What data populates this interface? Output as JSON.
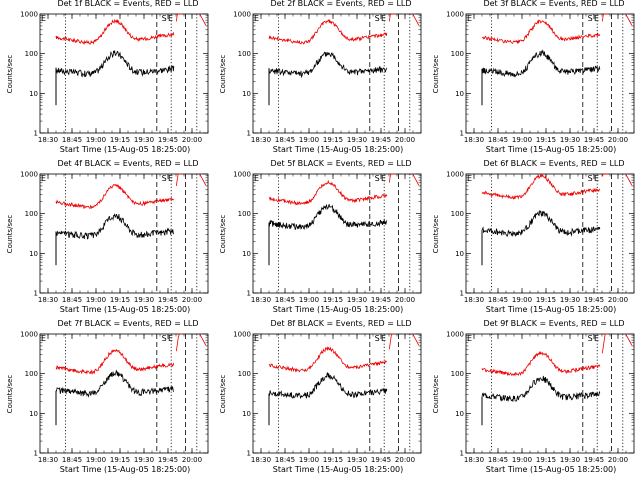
{
  "chart_data": [
    {
      "type": "line",
      "title": "Det 1f BLACK = Events, RED = LLD",
      "xlabel": "Start Time (15-Aug-05 18:25:00)",
      "ylabel": "Counts/sec",
      "xticks": [
        "18:30",
        "18:45",
        "19:00",
        "19:15",
        "19:30",
        "19:45",
        "20:00"
      ],
      "yticks": [
        "1",
        "10",
        "100",
        "1000"
      ],
      "ylim": [
        1,
        1000
      ],
      "yscale": "log",
      "marker_labels": [
        "E",
        "S",
        "E"
      ],
      "red_base": 300,
      "black_base": 40,
      "peak": 19.2,
      "gap_lld_end": 19.9
    },
    {
      "type": "line",
      "title": "Det 2f BLACK = Events, RED = LLD",
      "xlabel": "Start Time (15-Aug-05 18:25:00)",
      "ylabel": "Counts/sec",
      "xticks": [
        "18:30",
        "18:45",
        "19:00",
        "19:15",
        "19:30",
        "19:45",
        "20:00"
      ],
      "yticks": [
        "1",
        "10",
        "100",
        "1000"
      ],
      "ylim": [
        1,
        1000
      ],
      "yscale": "log",
      "marker_labels": [
        "E",
        "S",
        "E"
      ],
      "red_base": 300,
      "black_base": 40,
      "peak": 19.2,
      "gap_lld_end": 19.9
    },
    {
      "type": "line",
      "title": "Det 3f BLACK = Events, RED = LLD",
      "xlabel": "Start Time (15-Aug-05 18:25:00)",
      "ylabel": "Counts/sec",
      "xticks": [
        "18:30",
        "18:45",
        "19:00",
        "19:15",
        "19:30",
        "19:45",
        "20:00"
      ],
      "yticks": [
        "1",
        "10",
        "100",
        "1000"
      ],
      "ylim": [
        1,
        1000
      ],
      "yscale": "log",
      "marker_labels": [
        "E",
        "S",
        "E"
      ],
      "red_base": 300,
      "black_base": 40,
      "peak": 19.2,
      "gap_lld_end": 19.9
    },
    {
      "type": "line",
      "title": "Det 4f BLACK = Events, RED = LLD",
      "xlabel": "Start Time (15-Aug-05 18:25:00)",
      "ylabel": "Counts/sec",
      "xticks": [
        "18:30",
        "18:45",
        "19:00",
        "19:15",
        "19:30",
        "19:45",
        "20:00"
      ],
      "yticks": [
        "1",
        "10",
        "100",
        "1000"
      ],
      "ylim": [
        1,
        1000
      ],
      "yscale": "log",
      "marker_labels": [
        "E",
        "S",
        "E"
      ],
      "red_base": 230,
      "black_base": 35,
      "peak": 19.2,
      "gap_lld_end": 19.9
    },
    {
      "type": "line",
      "title": "Det 5f BLACK = Events, RED = LLD",
      "xlabel": "Start Time (15-Aug-05 18:25:00)",
      "ylabel": "Counts/sec",
      "xticks": [
        "18:30",
        "18:45",
        "19:00",
        "19:15",
        "19:30",
        "19:45",
        "20:00"
      ],
      "yticks": [
        "1",
        "10",
        "100",
        "1000"
      ],
      "ylim": [
        1,
        1000
      ],
      "yscale": "log",
      "marker_labels": [
        "E",
        "S",
        "E"
      ],
      "red_base": 280,
      "black_base": 60,
      "peak": 19.2,
      "gap_lld_end": 19.9
    },
    {
      "type": "line",
      "title": "Det 6f BLACK = Events, RED = LLD",
      "xlabel": "Start Time (15-Aug-05 18:25:00)",
      "ylabel": "Counts/sec",
      "xticks": [
        "18:30",
        "18:45",
        "19:00",
        "19:15",
        "19:30",
        "19:45",
        "20:00"
      ],
      "yticks": [
        "1",
        "10",
        "100",
        "1000"
      ],
      "ylim": [
        1,
        1000
      ],
      "yscale": "log",
      "marker_labels": [
        "E",
        "S",
        "E"
      ],
      "red_base": 400,
      "black_base": 40,
      "peak": 19.2,
      "gap_lld_end": 19.9
    },
    {
      "type": "line",
      "title": "Det 7f BLACK = Events, RED = LLD",
      "xlabel": "Start Time (15-Aug-05 18:25:00)",
      "ylabel": "Counts/sec",
      "xticks": [
        "18:30",
        "18:45",
        "19:00",
        "19:15",
        "19:30",
        "19:45",
        "20:00"
      ],
      "yticks": [
        "1",
        "10",
        "100",
        "1000"
      ],
      "ylim": [
        1,
        1000
      ],
      "yscale": "log",
      "marker_labels": [
        "E",
        "S",
        "E"
      ],
      "red_base": 170,
      "black_base": 40,
      "peak": 19.2,
      "gap_lld_end": 19.9
    },
    {
      "type": "line",
      "title": "Det 8f BLACK = Events, RED = LLD",
      "xlabel": "Start Time (15-Aug-05 18:25:00)",
      "ylabel": "Counts/sec",
      "xticks": [
        "18:30",
        "18:45",
        "19:00",
        "19:15",
        "19:30",
        "19:45",
        "20:00"
      ],
      "yticks": [
        "1",
        "10",
        "100",
        "1000"
      ],
      "ylim": [
        1,
        1000
      ],
      "yscale": "log",
      "marker_labels": [
        "E",
        "S",
        "E"
      ],
      "red_base": 190,
      "black_base": 35,
      "peak": 19.2,
      "gap_lld_end": 19.9
    },
    {
      "type": "line",
      "title": "Det 9f BLACK = Events, RED = LLD",
      "xlabel": "Start Time (15-Aug-05 18:25:00)",
      "ylabel": "Counts/sec",
      "xticks": [
        "18:30",
        "18:45",
        "19:00",
        "19:15",
        "19:30",
        "19:45",
        "20:00"
      ],
      "yticks": [
        "1",
        "10",
        "100",
        "1000"
      ],
      "ylim": [
        1,
        1000
      ],
      "yscale": "log",
      "marker_labels": [
        "E",
        "S",
        "E"
      ],
      "red_base": 150,
      "black_base": 30,
      "peak": 19.2,
      "gap_lld_end": 19.9
    }
  ],
  "colors": {
    "events": "#000000",
    "lld": "#ee0000",
    "axes": "#000000",
    "background": "#ffffff"
  }
}
